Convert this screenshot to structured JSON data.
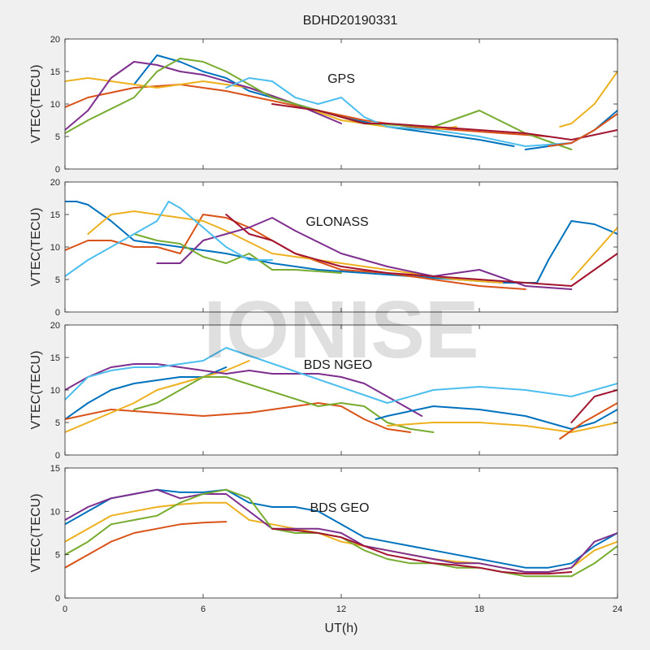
{
  "figure": {
    "title": "BDHD20190331",
    "watermark": "IONISE",
    "xlabel": "UT(h)"
  },
  "chart_data": [
    {
      "type": "line",
      "label": "GPS",
      "ylabel": "VTEC(TECU)",
      "xlim": [
        0,
        24
      ],
      "ylim": [
        0,
        20
      ],
      "xticks": [
        0,
        6,
        12,
        18,
        24
      ],
      "yticks": [
        0,
        5,
        10,
        15,
        20
      ],
      "grid": false,
      "series": [
        {
          "color": "#0072BD",
          "x": [
            3,
            4,
            5,
            6,
            7,
            8,
            10,
            12,
            14,
            16,
            18,
            19.5
          ],
          "y": [
            13,
            17.5,
            16.5,
            15,
            14,
            12,
            10,
            8,
            6.5,
            5.5,
            4.5,
            3.5
          ]
        },
        {
          "color": "#D95319",
          "x": [
            0,
            1,
            3,
            5,
            7,
            9,
            11,
            13,
            15,
            17,
            19,
            21
          ],
          "y": [
            9.5,
            11,
            12.5,
            13,
            12,
            10.5,
            9,
            7.5,
            6.5,
            6,
            5.5,
            5
          ]
        },
        {
          "color": "#EDB120",
          "x": [
            0,
            1,
            2,
            4,
            6,
            8,
            10,
            12,
            14,
            16,
            17
          ],
          "y": [
            13.5,
            14,
            13.5,
            12.5,
            13.5,
            12.5,
            10,
            7.5,
            6.5,
            6,
            6.5
          ]
        },
        {
          "color": "#7E2F8E",
          "x": [
            0,
            1,
            2,
            3,
            4,
            5,
            6,
            8,
            10,
            12
          ],
          "y": [
            6,
            9,
            14,
            16.5,
            16,
            15,
            14.5,
            12.5,
            10,
            7
          ]
        },
        {
          "color": "#77AC30",
          "x": [
            0,
            1,
            3,
            4,
            5,
            6,
            7,
            9,
            11,
            13,
            16,
            18,
            20,
            22
          ],
          "y": [
            5.5,
            7.5,
            11,
            15,
            17,
            16.5,
            15,
            11,
            9,
            7,
            6.5,
            9,
            5.5,
            3
          ]
        },
        {
          "color": "#4DBEEE",
          "x": [
            7,
            8,
            9,
            10,
            11,
            12,
            13,
            14,
            16,
            18,
            20,
            22
          ],
          "y": [
            12.5,
            14,
            13.5,
            11,
            10,
            11,
            8,
            6.5,
            6,
            5,
            3.5,
            4
          ]
        },
        {
          "color": "#A2142F",
          "x": [
            9,
            10,
            11,
            12,
            13,
            14,
            16,
            18,
            20,
            22,
            24
          ],
          "y": [
            10,
            9.5,
            9,
            8,
            7,
            7,
            6.5,
            6,
            5.5,
            4.5,
            6
          ]
        },
        {
          "color": "#0072BD",
          "x": [
            20,
            21,
            22,
            23,
            24
          ],
          "y": [
            3,
            3.5,
            4,
            6,
            9
          ]
        },
        {
          "color": "#EDB120",
          "x": [
            21.5,
            22,
            23,
            24
          ],
          "y": [
            6.5,
            7,
            10,
            15
          ]
        },
        {
          "color": "#D95319",
          "x": [
            21,
            22,
            23,
            24
          ],
          "y": [
            3.5,
            4,
            6,
            8.5
          ]
        }
      ]
    },
    {
      "type": "line",
      "label": "GLONASS",
      "ylabel": "VTEC(TECU)",
      "xlim": [
        0,
        24
      ],
      "ylim": [
        0,
        20
      ],
      "xticks": [
        0,
        6,
        12,
        18,
        24
      ],
      "yticks": [
        0,
        5,
        10,
        15,
        20
      ],
      "grid": false,
      "series": [
        {
          "color": "#0072BD",
          "x": [
            0,
            0.5,
            1,
            2,
            3,
            5,
            7,
            9,
            11,
            13,
            15,
            17,
            19,
            20.5,
            21,
            22,
            23,
            24
          ],
          "y": [
            17,
            17,
            16.5,
            14,
            11,
            10,
            9,
            7.5,
            6.5,
            6,
            5.5,
            5,
            4.5,
            4.5,
            8,
            14,
            13.5,
            12
          ]
        },
        {
          "color": "#D95319",
          "x": [
            0,
            1,
            2,
            3,
            4,
            5,
            6,
            7,
            8,
            10,
            12,
            14,
            16,
            18,
            20
          ],
          "y": [
            9.5,
            11,
            11,
            10,
            10,
            9,
            15,
            14.5,
            13,
            9,
            6.5,
            6,
            5,
            4,
            3.5
          ]
        },
        {
          "color": "#EDB120",
          "x": [
            1,
            2,
            3,
            4,
            5,
            6,
            7,
            9,
            11,
            13,
            15,
            17,
            19
          ],
          "y": [
            12,
            15,
            15.5,
            15,
            14.5,
            14,
            12.5,
            9,
            8,
            7,
            6,
            5,
            4.5
          ]
        },
        {
          "color": "#7E2F8E",
          "x": [
            4,
            5,
            6,
            7,
            8,
            9,
            10,
            12,
            14,
            16,
            18,
            20,
            22
          ],
          "y": [
            7.5,
            7.5,
            11,
            12,
            13,
            14.5,
            12.5,
            9,
            7,
            5.5,
            6.5,
            4,
            3.5
          ]
        },
        {
          "color": "#77AC30",
          "x": [
            3,
            4,
            5,
            6,
            7,
            8,
            9,
            10,
            12
          ],
          "y": [
            12,
            11,
            10.5,
            8.5,
            7.5,
            9,
            6.5,
            6.5,
            6
          ]
        },
        {
          "color": "#4DBEEE",
          "x": [
            0,
            1,
            2,
            3,
            4,
            4.5,
            5,
            6,
            7,
            8,
            9
          ],
          "y": [
            5.5,
            8,
            10,
            12,
            14,
            17,
            16,
            13,
            10,
            8,
            8
          ]
        },
        {
          "color": "#A2142F",
          "x": [
            7,
            8,
            9,
            10,
            11,
            12,
            14,
            16,
            18,
            20,
            22,
            24
          ],
          "y": [
            15,
            12,
            11,
            9,
            8,
            7,
            6,
            5.5,
            5,
            4.5,
            4,
            9
          ]
        },
        {
          "color": "#EDB120",
          "x": [
            22,
            23,
            24
          ],
          "y": [
            5,
            9,
            13
          ]
        }
      ]
    },
    {
      "type": "line",
      "label": "BDS NGEO",
      "ylabel": "VTEC(TECU)",
      "xlim": [
        0,
        24
      ],
      "ylim": [
        0,
        20
      ],
      "xticks": [
        0,
        6,
        12,
        18,
        24
      ],
      "yticks": [
        0,
        5,
        10,
        15,
        20
      ],
      "grid": false,
      "series": [
        {
          "color": "#0072BD",
          "x": [
            0,
            1,
            2,
            3,
            4,
            5,
            6,
            7
          ],
          "y": [
            5.5,
            8,
            10,
            11,
            11.5,
            12,
            12,
            13.5
          ]
        },
        {
          "color": "#D95319",
          "x": [
            0,
            2,
            4,
            6,
            8,
            10,
            11,
            12,
            13,
            14,
            15
          ],
          "y": [
            5.5,
            7,
            6.5,
            6,
            6.5,
            7.5,
            8,
            7.5,
            5.5,
            4,
            3.5
          ]
        },
        {
          "color": "#EDB120",
          "x": [
            0,
            1,
            2,
            3,
            4,
            5,
            6,
            7,
            8
          ],
          "y": [
            3.5,
            5,
            6.5,
            8,
            10,
            11,
            12,
            13,
            14.5
          ]
        },
        {
          "color": "#7E2F8E",
          "x": [
            0,
            1,
            2,
            3,
            4,
            5,
            6,
            7,
            8,
            9,
            10,
            11,
            12,
            13,
            14,
            15,
            15.5
          ],
          "y": [
            10,
            12,
            13.5,
            14,
            14,
            13.5,
            13,
            12.5,
            13,
            12.5,
            12.5,
            12.5,
            12,
            11,
            9,
            7,
            6
          ]
        },
        {
          "color": "#77AC30",
          "x": [
            3,
            4,
            5,
            6,
            7,
            11,
            12,
            13,
            14,
            15,
            16
          ],
          "y": [
            7,
            8,
            10,
            12,
            12,
            7.5,
            8,
            7.5,
            5,
            4,
            3.5
          ]
        },
        {
          "color": "#4DBEEE",
          "x": [
            0,
            1,
            2,
            3,
            4,
            5,
            6,
            7,
            14,
            16,
            18,
            20,
            22,
            24
          ],
          "y": [
            8.5,
            12,
            13,
            13.5,
            13.5,
            14,
            14.5,
            16.5,
            8,
            10,
            10.5,
            10,
            9,
            11
          ]
        },
        {
          "color": "#0072BD",
          "x": [
            13.5,
            14,
            16,
            18,
            20,
            22,
            23,
            24
          ],
          "y": [
            5.5,
            6,
            7.5,
            7,
            6,
            4,
            5,
            7
          ]
        },
        {
          "color": "#EDB120",
          "x": [
            14,
            16,
            18,
            20,
            22,
            24
          ],
          "y": [
            4.5,
            5,
            5,
            4.5,
            3.5,
            5
          ]
        },
        {
          "color": "#A2142F",
          "x": [
            22,
            23,
            24
          ],
          "y": [
            5,
            9,
            10
          ]
        },
        {
          "color": "#D95319",
          "x": [
            21.5,
            22.5,
            24
          ],
          "y": [
            2.5,
            5,
            8
          ]
        }
      ]
    },
    {
      "type": "line",
      "label": "BDS GEO",
      "ylabel": "VTEC(TECU)",
      "xlim": [
        0,
        24
      ],
      "ylim": [
        0,
        15
      ],
      "xticks": [
        0,
        6,
        12,
        18,
        24
      ],
      "yticks": [
        0,
        5,
        10,
        15
      ],
      "grid": false,
      "series": [
        {
          "color": "#0072BD",
          "x": [
            0,
            1,
            2,
            3,
            4,
            5,
            6,
            7,
            8,
            9,
            10,
            11,
            12,
            13,
            14,
            15,
            16,
            17,
            18,
            19,
            20,
            21,
            22,
            23,
            24
          ],
          "y": [
            8.5,
            10,
            11.5,
            12,
            12.5,
            12.2,
            12.2,
            12.5,
            11,
            10.5,
            10.5,
            10,
            8.5,
            7,
            6.5,
            6,
            5.5,
            5,
            4.5,
            4,
            3.5,
            3.5,
            4,
            6,
            7.5
          ]
        },
        {
          "color": "#D95319",
          "x": [
            0,
            1,
            2,
            3,
            4,
            5,
            6,
            7
          ],
          "y": [
            3.5,
            5,
            6.5,
            7.5,
            8,
            8.5,
            8.7,
            8.8
          ]
        },
        {
          "color": "#EDB120",
          "x": [
            0,
            1,
            2,
            3,
            4,
            5,
            6,
            7,
            8,
            9,
            10,
            11,
            12,
            13,
            14,
            15,
            16,
            17,
            18,
            19,
            20,
            21,
            22,
            23,
            24
          ],
          "y": [
            6.5,
            8,
            9.5,
            10,
            10.5,
            10.8,
            11,
            11,
            9,
            8.5,
            8,
            7.5,
            6.5,
            6,
            5.5,
            5,
            4.5,
            4.2,
            4,
            3.5,
            3,
            3,
            3.5,
            5.5,
            6.5
          ]
        },
        {
          "color": "#7E2F8E",
          "x": [
            0,
            1,
            2,
            3,
            4,
            5,
            6,
            7,
            8,
            9,
            10,
            11,
            12,
            13,
            14,
            15,
            16,
            17,
            18,
            19,
            20,
            21,
            22,
            23,
            24
          ],
          "y": [
            9,
            10.5,
            11.5,
            12,
            12.5,
            11.5,
            12,
            12,
            10,
            8,
            8,
            8,
            7.5,
            6,
            5.5,
            5,
            4.5,
            4,
            4,
            3.5,
            3,
            3,
            3.5,
            6.5,
            7.5
          ]
        },
        {
          "color": "#77AC30",
          "x": [
            0,
            1,
            2,
            3,
            4,
            5,
            6,
            7,
            8,
            9,
            10,
            11,
            12,
            13,
            14,
            15,
            16,
            17,
            18,
            19,
            20,
            21,
            22,
            23,
            24
          ],
          "y": [
            5,
            6.5,
            8.5,
            9,
            9.5,
            11,
            12,
            12.5,
            11.5,
            8,
            7.5,
            7.5,
            7,
            5.5,
            4.5,
            4,
            4,
            3.5,
            3.5,
            3,
            2.5,
            2.5,
            2.5,
            4,
            6
          ]
        },
        {
          "color": "#A2142F",
          "x": [
            9,
            10,
            11,
            12,
            13,
            14,
            15,
            16,
            17,
            18,
            19,
            20,
            21,
            22
          ],
          "y": [
            8,
            7.8,
            7.5,
            7,
            6,
            5,
            4.5,
            4,
            3.8,
            3.5,
            3,
            2.8,
            2.8,
            3
          ]
        }
      ]
    }
  ]
}
